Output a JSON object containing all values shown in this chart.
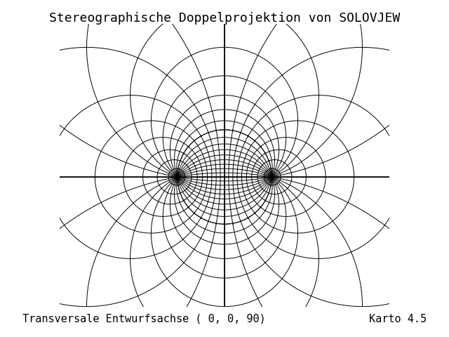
{
  "title": "Stereographische Doppelprojektion von SOLOVJEW",
  "subtitle": "Transversale Entwurfsachse ( 0, 0, 90)",
  "karto": "Karto 4.5",
  "bg_color": "#ffffff",
  "line_color": "#000000",
  "coast_color": "#0000ff",
  "grid_color": "#000000",
  "title_fontsize": 13,
  "label_fontsize": 11,
  "figsize": [
    6.4,
    4.8
  ],
  "dpi": 100,
  "grid_step_deg": 10,
  "grid_lw": 0.7,
  "coast_lw": 0.6,
  "axis_lw": 1.2
}
